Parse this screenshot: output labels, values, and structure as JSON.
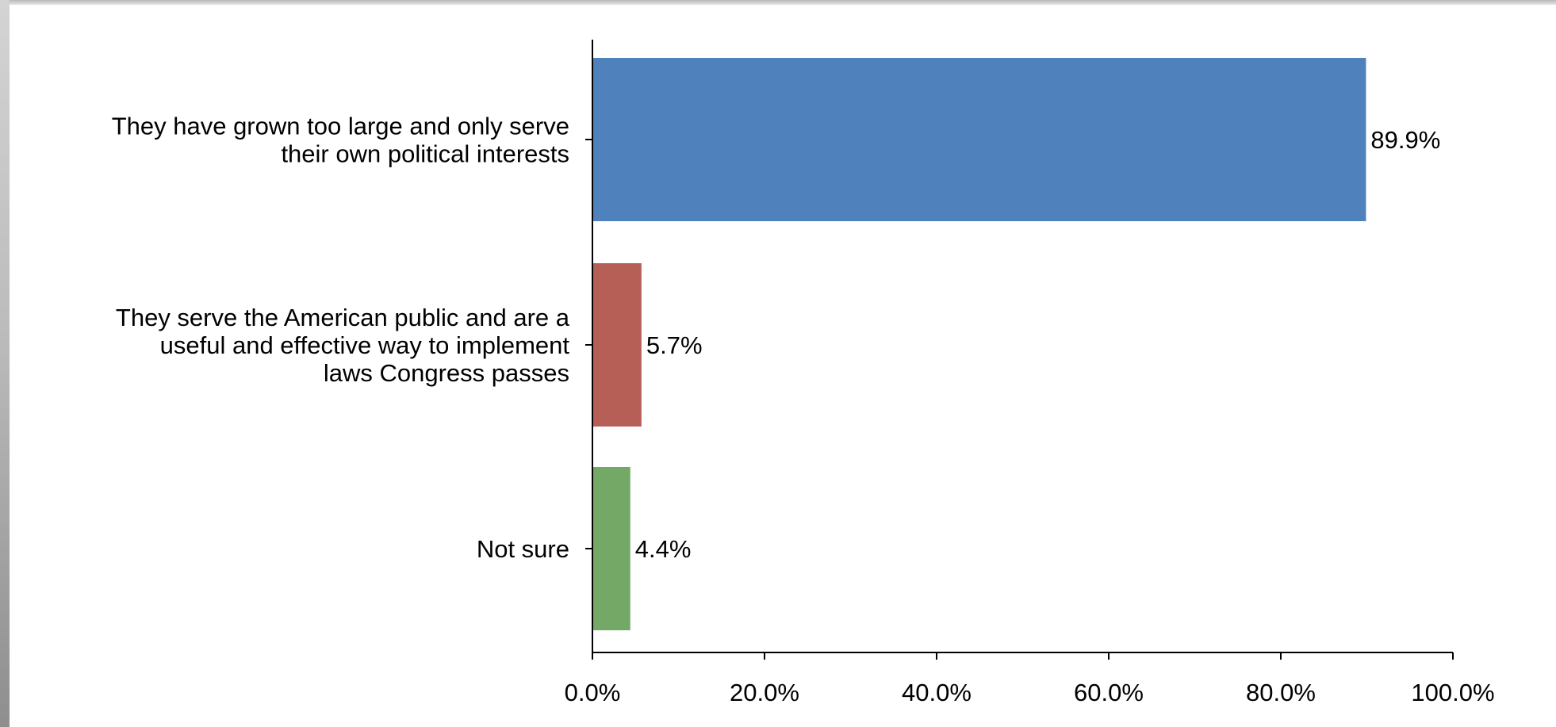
{
  "chart_data": {
    "type": "bar",
    "orientation": "horizontal",
    "categories": [
      [
        "They have grown too large and only serve",
        "their own political interests"
      ],
      [
        "They serve the American public and are a",
        "useful and effective way to implement",
        "laws Congress passes"
      ],
      [
        "Not sure"
      ]
    ],
    "values": [
      89.9,
      5.7,
      4.4
    ],
    "data_labels": [
      "89.9%",
      "5.7%",
      "4.4%"
    ],
    "colors": [
      "#4f81bd",
      "#b65f57",
      "#74a866"
    ],
    "xlim": [
      0,
      100
    ],
    "x_ticks": [
      0,
      20,
      40,
      60,
      80,
      100
    ],
    "x_tick_labels": [
      "0.0%",
      "20.0%",
      "40.0%",
      "60.0%",
      "80.0%",
      "100.0%"
    ],
    "grid": false,
    "legend": "none"
  }
}
